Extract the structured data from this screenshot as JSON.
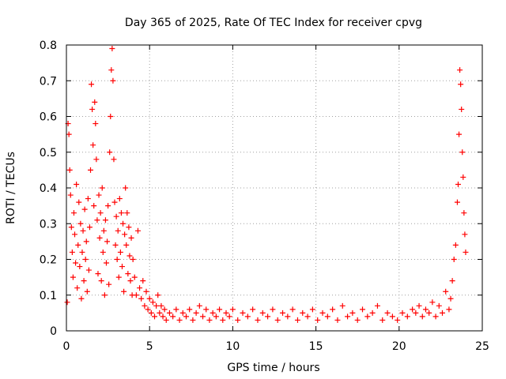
{
  "chart_data": {
    "type": "scatter",
    "title": "Day 365 of 2025, Rate Of TEC Index for receiver cpvg",
    "xlabel": "GPS time / hours",
    "ylabel": "ROTI / TECUs",
    "xlim": [
      0,
      25
    ],
    "ylim": [
      0,
      0.8
    ],
    "xticks": [
      0,
      5,
      10,
      15,
      20,
      25
    ],
    "xtick_labels": [
      "0",
      "5",
      "10",
      "15",
      "20",
      "25"
    ],
    "yticks": [
      0,
      0.1,
      0.2,
      0.3,
      0.4,
      0.5,
      0.6,
      0.7,
      0.8
    ],
    "ytick_labels": [
      "0",
      "0.1",
      "0.2",
      "0.3",
      "0.4",
      "0.5",
      "0.6",
      "0.7",
      "0.8"
    ],
    "grid": true,
    "marker": "+",
    "color": "#ff0000",
    "series": [
      {
        "name": "ROTI",
        "points": [
          [
            0.05,
            0.08
          ],
          [
            0.1,
            0.58
          ],
          [
            0.15,
            0.55
          ],
          [
            0.2,
            0.45
          ],
          [
            0.25,
            0.38
          ],
          [
            0.3,
            0.29
          ],
          [
            0.35,
            0.22
          ],
          [
            0.4,
            0.15
          ],
          [
            0.45,
            0.33
          ],
          [
            0.5,
            0.27
          ],
          [
            0.55,
            0.19
          ],
          [
            0.6,
            0.41
          ],
          [
            0.65,
            0.12
          ],
          [
            0.7,
            0.24
          ],
          [
            0.75,
            0.36
          ],
          [
            0.8,
            0.18
          ],
          [
            0.85,
            0.3
          ],
          [
            0.9,
            0.09
          ],
          [
            0.95,
            0.22
          ],
          [
            1.0,
            0.28
          ],
          [
            1.05,
            0.14
          ],
          [
            1.1,
            0.34
          ],
          [
            1.15,
            0.2
          ],
          [
            1.2,
            0.25
          ],
          [
            1.25,
            0.11
          ],
          [
            1.3,
            0.37
          ],
          [
            1.35,
            0.17
          ],
          [
            1.4,
            0.29
          ],
          [
            1.45,
            0.45
          ],
          [
            1.5,
            0.69
          ],
          [
            1.55,
            0.62
          ],
          [
            1.6,
            0.52
          ],
          [
            1.65,
            0.35
          ],
          [
            1.7,
            0.64
          ],
          [
            1.75,
            0.58
          ],
          [
            1.8,
            0.48
          ],
          [
            1.85,
            0.31
          ],
          [
            1.9,
            0.16
          ],
          [
            1.95,
            0.38
          ],
          [
            2.0,
            0.26
          ],
          [
            2.05,
            0.33
          ],
          [
            2.1,
            0.14
          ],
          [
            2.15,
            0.4
          ],
          [
            2.2,
            0.22
          ],
          [
            2.25,
            0.28
          ],
          [
            2.3,
            0.1
          ],
          [
            2.35,
            0.31
          ],
          [
            2.4,
            0.19
          ],
          [
            2.45,
            0.25
          ],
          [
            2.5,
            0.35
          ],
          [
            2.55,
            0.13
          ],
          [
            2.6,
            0.5
          ],
          [
            2.65,
            0.6
          ],
          [
            2.7,
            0.73
          ],
          [
            2.75,
            0.79
          ],
          [
            2.8,
            0.7
          ],
          [
            2.85,
            0.48
          ],
          [
            2.9,
            0.36
          ],
          [
            2.95,
            0.24
          ],
          [
            3.0,
            0.32
          ],
          [
            3.05,
            0.2
          ],
          [
            3.1,
            0.28
          ],
          [
            3.15,
            0.15
          ],
          [
            3.2,
            0.37
          ],
          [
            3.25,
            0.22
          ],
          [
            3.3,
            0.33
          ],
          [
            3.35,
            0.18
          ],
          [
            3.4,
            0.3
          ],
          [
            3.45,
            0.11
          ],
          [
            3.5,
            0.27
          ],
          [
            3.55,
            0.4
          ],
          [
            3.6,
            0.24
          ],
          [
            3.65,
            0.33
          ],
          [
            3.7,
            0.16
          ],
          [
            3.75,
            0.29
          ],
          [
            3.8,
            0.21
          ],
          [
            3.85,
            0.14
          ],
          [
            3.9,
            0.26
          ],
          [
            3.95,
            0.1
          ],
          [
            4.0,
            0.2
          ],
          [
            4.1,
            0.15
          ],
          [
            4.2,
            0.1
          ],
          [
            4.3,
            0.28
          ],
          [
            4.4,
            0.12
          ],
          [
            4.5,
            0.09
          ],
          [
            4.6,
            0.14
          ],
          [
            4.7,
            0.07
          ],
          [
            4.8,
            0.11
          ],
          [
            4.9,
            0.06
          ],
          [
            5.0,
            0.09
          ],
          [
            5.1,
            0.05
          ],
          [
            5.2,
            0.08
          ],
          [
            5.3,
            0.04
          ],
          [
            5.4,
            0.07
          ],
          [
            5.5,
            0.1
          ],
          [
            5.6,
            0.05
          ],
          [
            5.7,
            0.07
          ],
          [
            5.8,
            0.04
          ],
          [
            5.9,
            0.06
          ],
          [
            6.0,
            0.03
          ],
          [
            6.2,
            0.05
          ],
          [
            6.4,
            0.04
          ],
          [
            6.6,
            0.06
          ],
          [
            6.8,
            0.03
          ],
          [
            7.0,
            0.05
          ],
          [
            7.2,
            0.04
          ],
          [
            7.4,
            0.06
          ],
          [
            7.6,
            0.03
          ],
          [
            7.8,
            0.05
          ],
          [
            8.0,
            0.07
          ],
          [
            8.2,
            0.04
          ],
          [
            8.4,
            0.06
          ],
          [
            8.6,
            0.03
          ],
          [
            8.8,
            0.05
          ],
          [
            9.0,
            0.04
          ],
          [
            9.2,
            0.06
          ],
          [
            9.4,
            0.03
          ],
          [
            9.6,
            0.05
          ],
          [
            9.8,
            0.04
          ],
          [
            10.0,
            0.06
          ],
          [
            10.3,
            0.03
          ],
          [
            10.6,
            0.05
          ],
          [
            10.9,
            0.04
          ],
          [
            11.2,
            0.06
          ],
          [
            11.5,
            0.03
          ],
          [
            11.8,
            0.05
          ],
          [
            12.1,
            0.04
          ],
          [
            12.4,
            0.06
          ],
          [
            12.7,
            0.03
          ],
          [
            13.0,
            0.05
          ],
          [
            13.3,
            0.04
          ],
          [
            13.6,
            0.06
          ],
          [
            13.9,
            0.03
          ],
          [
            14.2,
            0.05
          ],
          [
            14.5,
            0.04
          ],
          [
            14.8,
            0.06
          ],
          [
            15.1,
            0.03
          ],
          [
            15.4,
            0.05
          ],
          [
            15.7,
            0.04
          ],
          [
            16.0,
            0.06
          ],
          [
            16.3,
            0.03
          ],
          [
            16.6,
            0.07
          ],
          [
            16.9,
            0.04
          ],
          [
            17.2,
            0.05
          ],
          [
            17.5,
            0.03
          ],
          [
            17.8,
            0.06
          ],
          [
            18.1,
            0.04
          ],
          [
            18.4,
            0.05
          ],
          [
            18.7,
            0.07
          ],
          [
            19.0,
            0.03
          ],
          [
            19.3,
            0.05
          ],
          [
            19.6,
            0.04
          ],
          [
            19.9,
            0.03
          ],
          [
            20.2,
            0.05
          ],
          [
            20.5,
            0.04
          ],
          [
            20.8,
            0.06
          ],
          [
            21.0,
            0.05
          ],
          [
            21.2,
            0.07
          ],
          [
            21.4,
            0.04
          ],
          [
            21.6,
            0.06
          ],
          [
            21.8,
            0.05
          ],
          [
            22.0,
            0.08
          ],
          [
            22.2,
            0.04
          ],
          [
            22.4,
            0.07
          ],
          [
            22.6,
            0.05
          ],
          [
            22.8,
            0.11
          ],
          [
            23.0,
            0.06
          ],
          [
            23.1,
            0.09
          ],
          [
            23.2,
            0.14
          ],
          [
            23.3,
            0.2
          ],
          [
            23.4,
            0.24
          ],
          [
            23.5,
            0.36
          ],
          [
            23.55,
            0.41
          ],
          [
            23.6,
            0.55
          ],
          [
            23.65,
            0.73
          ],
          [
            23.7,
            0.69
          ],
          [
            23.75,
            0.62
          ],
          [
            23.8,
            0.5
          ],
          [
            23.85,
            0.43
          ],
          [
            23.9,
            0.33
          ],
          [
            23.95,
            0.27
          ],
          [
            24.0,
            0.22
          ]
        ]
      }
    ]
  }
}
